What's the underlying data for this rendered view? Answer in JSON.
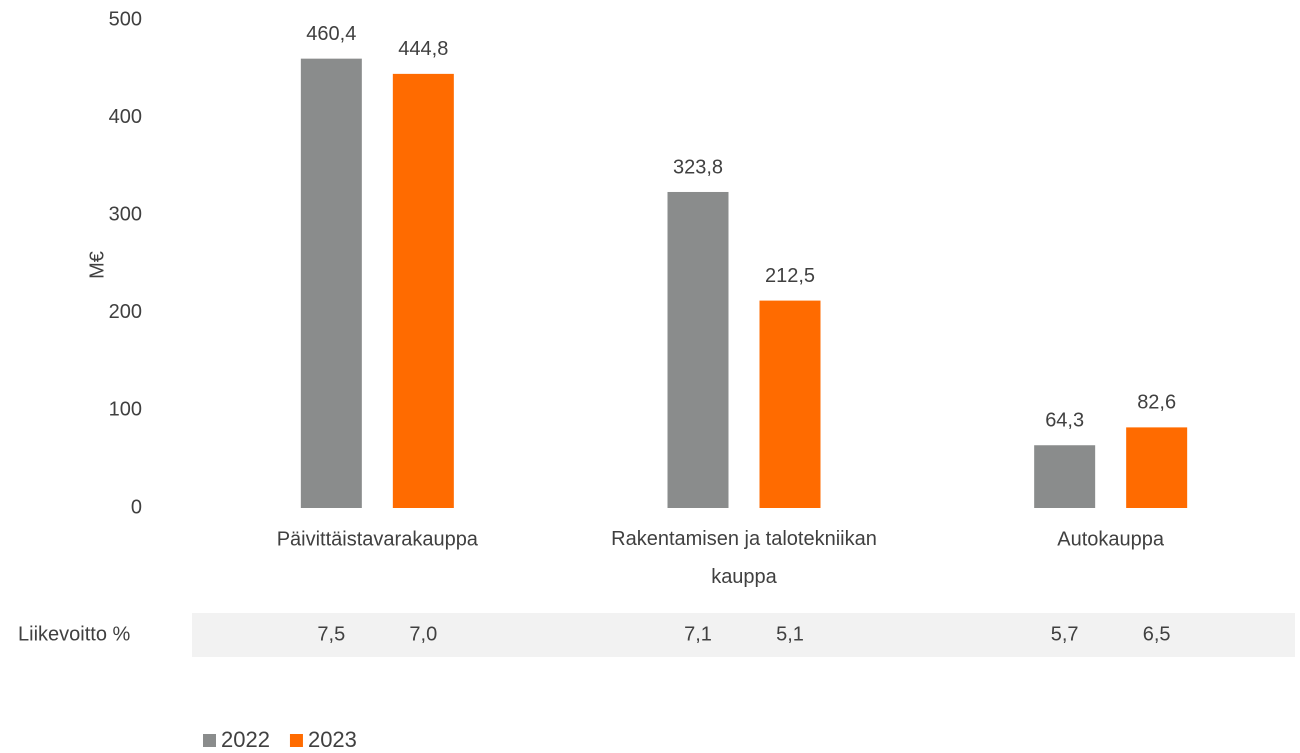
{
  "chart_data": {
    "type": "bar",
    "y_label": "M€",
    "categories": [
      "Päivittäistavarakauppa",
      "Rakentamisen ja talotekniikan kauppa",
      "Autokauppa"
    ],
    "series": [
      {
        "name": "2022",
        "color": "#8a8c8c",
        "values": [
          460.4,
          323.8,
          64.3
        ],
        "value_labels": [
          "460,4",
          "323,8",
          "64,3"
        ]
      },
      {
        "name": "2023",
        "color": "#ff6b00",
        "values": [
          444.8,
          212.5,
          82.6
        ],
        "value_labels": [
          "444,8",
          "212,5",
          "82,6"
        ]
      }
    ],
    "ylim": [
      0,
      500
    ],
    "yticks": [
      0,
      100,
      200,
      300,
      400,
      500
    ],
    "grid": false,
    "legend": "bottom-left",
    "margin_row": {
      "label": "Liikevoitto %",
      "cells": [
        [
          "7,5",
          "7,0"
        ],
        [
          "7,1",
          "5,1"
        ],
        [
          "5,7",
          "6,5"
        ]
      ]
    }
  }
}
